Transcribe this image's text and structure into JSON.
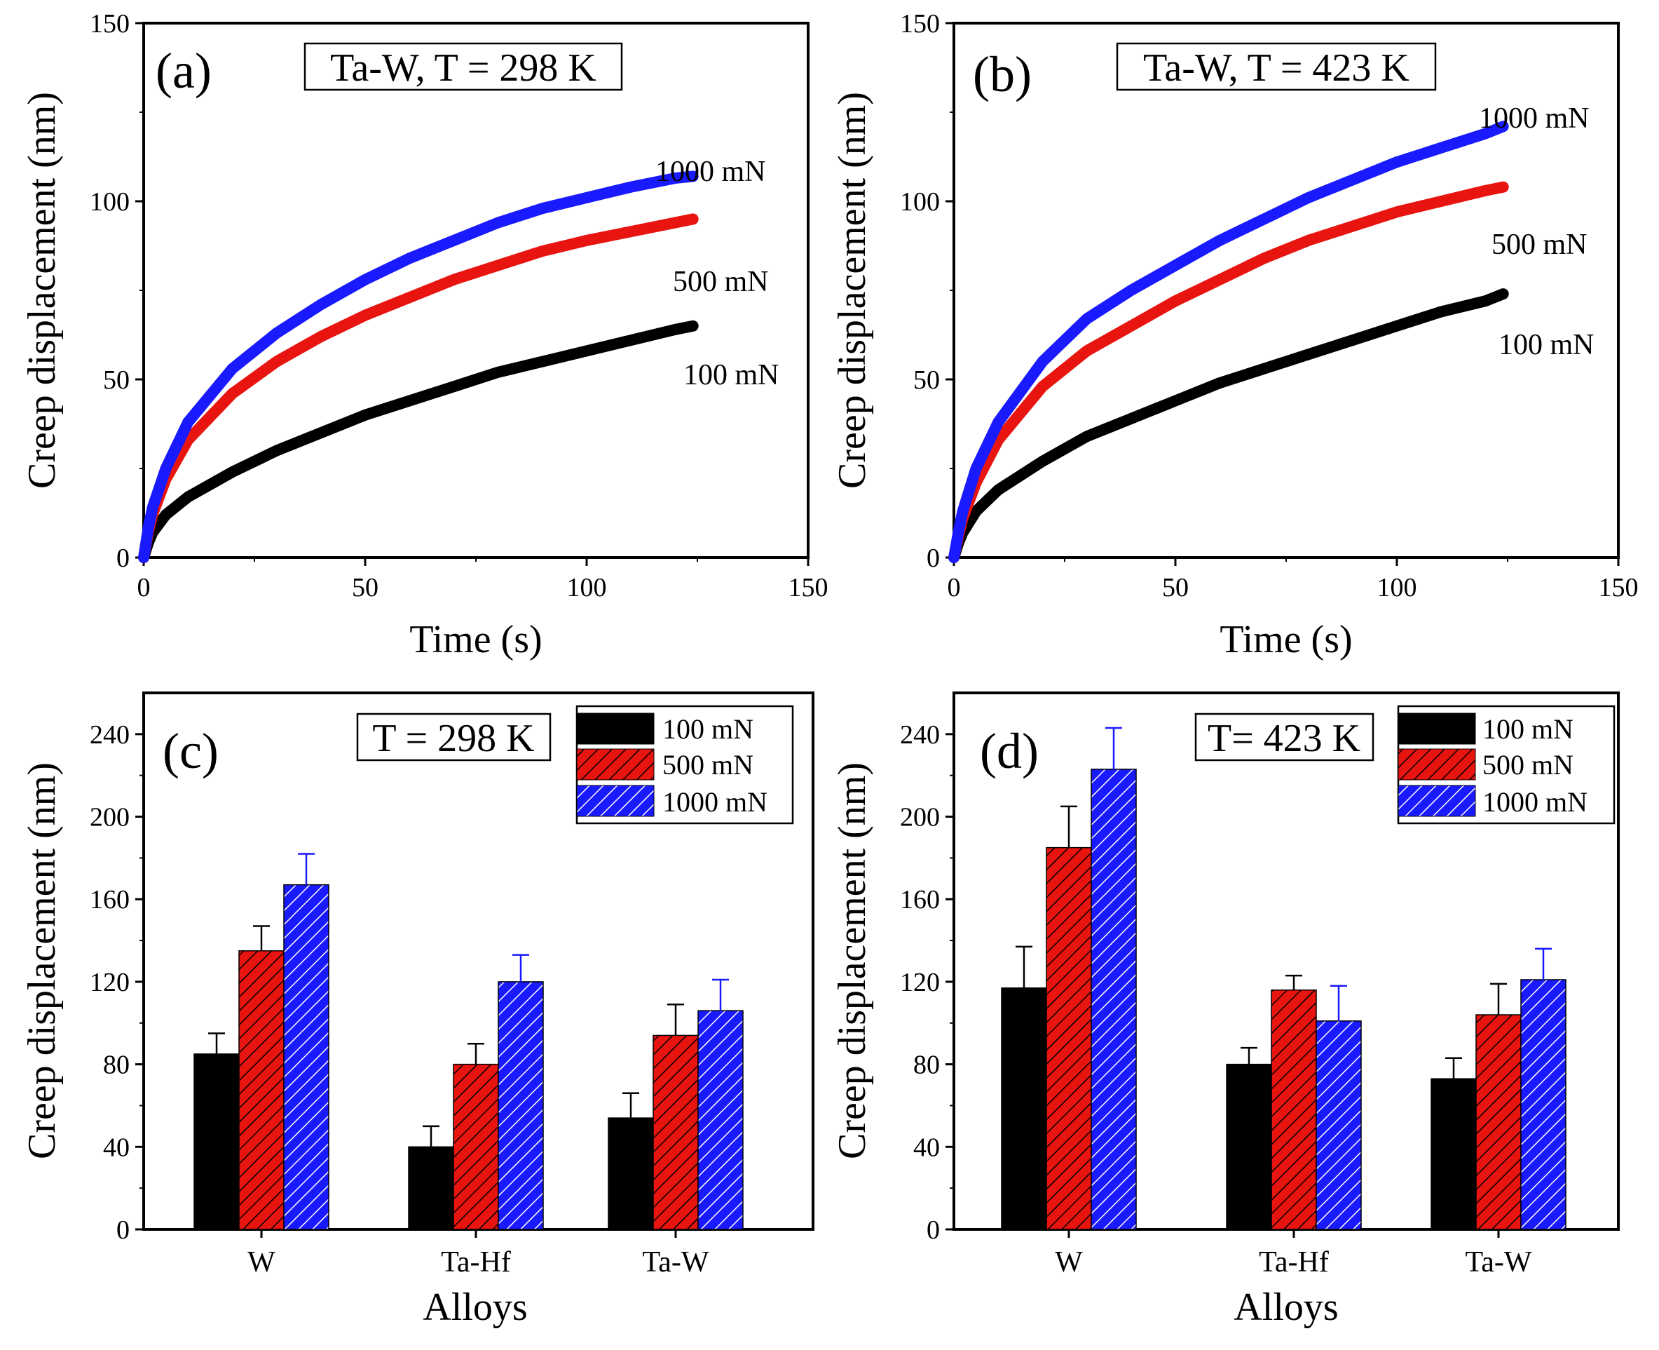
{
  "colors": {
    "100": "#000000",
    "500": "#e8140f",
    "1000": "#1a1aff",
    "axis": "#000000"
  },
  "chart_data": [
    {
      "id": "a",
      "type": "line",
      "panel_label": "(a)",
      "info": "Ta-W, T = 298 K",
      "xlabel": "Time (s)",
      "ylabel": "Creep displacement (nm)",
      "xlim": [
        0,
        150
      ],
      "ylim": [
        0,
        150
      ],
      "xticks": [
        0,
        50,
        100,
        150
      ],
      "yticks": [
        0,
        50,
        100,
        150
      ],
      "series": [
        {
          "name": "100 mN",
          "color_key": "100",
          "label": "100 mN",
          "x": [
            0,
            1,
            2,
            5,
            10,
            20,
            30,
            40,
            50,
            60,
            70,
            80,
            90,
            100,
            110,
            120,
            124
          ],
          "y": [
            0,
            4,
            7,
            12,
            17,
            24,
            30,
            35,
            40,
            44,
            48,
            52,
            55,
            58,
            61,
            64,
            65
          ]
        },
        {
          "name": "500 mN",
          "color_key": "500",
          "label": "500 mN",
          "x": [
            0,
            1,
            2,
            5,
            10,
            20,
            30,
            40,
            50,
            60,
            70,
            80,
            90,
            100,
            110,
            120,
            124
          ],
          "y": [
            0,
            7,
            12,
            22,
            33,
            46,
            55,
            62,
            68,
            73,
            78,
            82,
            86,
            89,
            91.5,
            94,
            95
          ]
        },
        {
          "name": "1000 mN",
          "color_key": "1000",
          "label": "1000 mN",
          "x": [
            0,
            1,
            2,
            5,
            10,
            20,
            30,
            40,
            50,
            60,
            70,
            80,
            90,
            100,
            110,
            120,
            124
          ],
          "y": [
            0,
            8,
            14,
            25,
            38,
            53,
            63,
            71,
            78,
            84,
            89,
            94,
            98,
            101,
            104,
            106.5,
            107
          ]
        }
      ]
    },
    {
      "id": "b",
      "type": "line",
      "panel_label": "(b)",
      "info": "Ta-W, T = 423 K",
      "xlabel": "Time (s)",
      "ylabel": "Creep displacement (nm)",
      "xlim": [
        0,
        150
      ],
      "ylim": [
        0,
        150
      ],
      "xticks": [
        0,
        50,
        100,
        150
      ],
      "yticks": [
        0,
        50,
        100,
        150
      ],
      "series": [
        {
          "name": "100 mN",
          "color_key": "100",
          "label": "100 mN",
          "x": [
            0,
            1,
            2,
            5,
            10,
            20,
            30,
            40,
            50,
            60,
            70,
            80,
            90,
            100,
            110,
            120,
            124
          ],
          "y": [
            0,
            4,
            7,
            13,
            19,
            27,
            34,
            39,
            44,
            49,
            53,
            57,
            61,
            65,
            69,
            72,
            74
          ]
        },
        {
          "name": "500 mN",
          "color_key": "500",
          "label": "500 mN",
          "x": [
            0,
            1,
            2,
            5,
            10,
            20,
            30,
            40,
            50,
            60,
            70,
            80,
            90,
            100,
            110,
            120,
            124
          ],
          "y": [
            0,
            6,
            11,
            21,
            33,
            48,
            58,
            65,
            72,
            78,
            84,
            89,
            93,
            97,
            100,
            103,
            104
          ]
        },
        {
          "name": "1000 mN",
          "color_key": "1000",
          "label": "1000 mN",
          "x": [
            0,
            1,
            2,
            5,
            10,
            20,
            30,
            40,
            50,
            60,
            70,
            80,
            90,
            100,
            110,
            120,
            124
          ],
          "y": [
            0,
            7,
            13,
            25,
            38,
            55,
            67,
            75,
            82,
            89,
            95,
            101,
            106,
            111,
            115,
            119,
            121
          ]
        }
      ]
    },
    {
      "id": "c",
      "type": "bar",
      "panel_label": "(c)",
      "info": "T = 298 K",
      "xlabel": "Alloys",
      "ylabel": "Creep displacement (nm)",
      "ylim": [
        0,
        260
      ],
      "yticks": [
        0,
        40,
        80,
        120,
        160,
        200,
        240
      ],
      "categories": [
        "W",
        "Ta-Hf",
        "Ta-W"
      ],
      "legend": [
        "100 mN",
        "500 mN",
        "1000 mN"
      ],
      "series": [
        {
          "name": "100 mN",
          "color_key": "100",
          "hatch": false,
          "values": [
            85,
            40,
            54
          ],
          "errors": [
            10,
            10,
            12
          ]
        },
        {
          "name": "500 mN",
          "color_key": "500",
          "hatch": true,
          "values": [
            135,
            80,
            94
          ],
          "errors": [
            12,
            10,
            15
          ]
        },
        {
          "name": "1000 mN",
          "color_key": "1000",
          "hatch": true,
          "values": [
            167,
            120,
            106
          ],
          "errors": [
            15,
            13,
            15
          ]
        }
      ]
    },
    {
      "id": "d",
      "type": "bar",
      "panel_label": "(d)",
      "info": "T= 423 K",
      "xlabel": "Alloys",
      "ylabel": "Creep displacement (nm)",
      "ylim": [
        0,
        260
      ],
      "yticks": [
        0,
        40,
        80,
        120,
        160,
        200,
        240
      ],
      "categories": [
        "W",
        "Ta-Hf",
        "Ta-W"
      ],
      "legend": [
        "100 mN",
        "500 mN",
        "1000 mN"
      ],
      "series": [
        {
          "name": "100 mN",
          "color_key": "100",
          "hatch": false,
          "values": [
            117,
            80,
            73
          ],
          "errors": [
            20,
            8,
            10
          ]
        },
        {
          "name": "500 mN",
          "color_key": "500",
          "hatch": true,
          "values": [
            185,
            116,
            104
          ],
          "errors": [
            20,
            7,
            15
          ]
        },
        {
          "name": "1000 mN",
          "color_key": "1000",
          "hatch": true,
          "values": [
            223,
            101,
            121
          ],
          "errors": [
            20,
            17,
            15
          ]
        }
      ]
    }
  ]
}
